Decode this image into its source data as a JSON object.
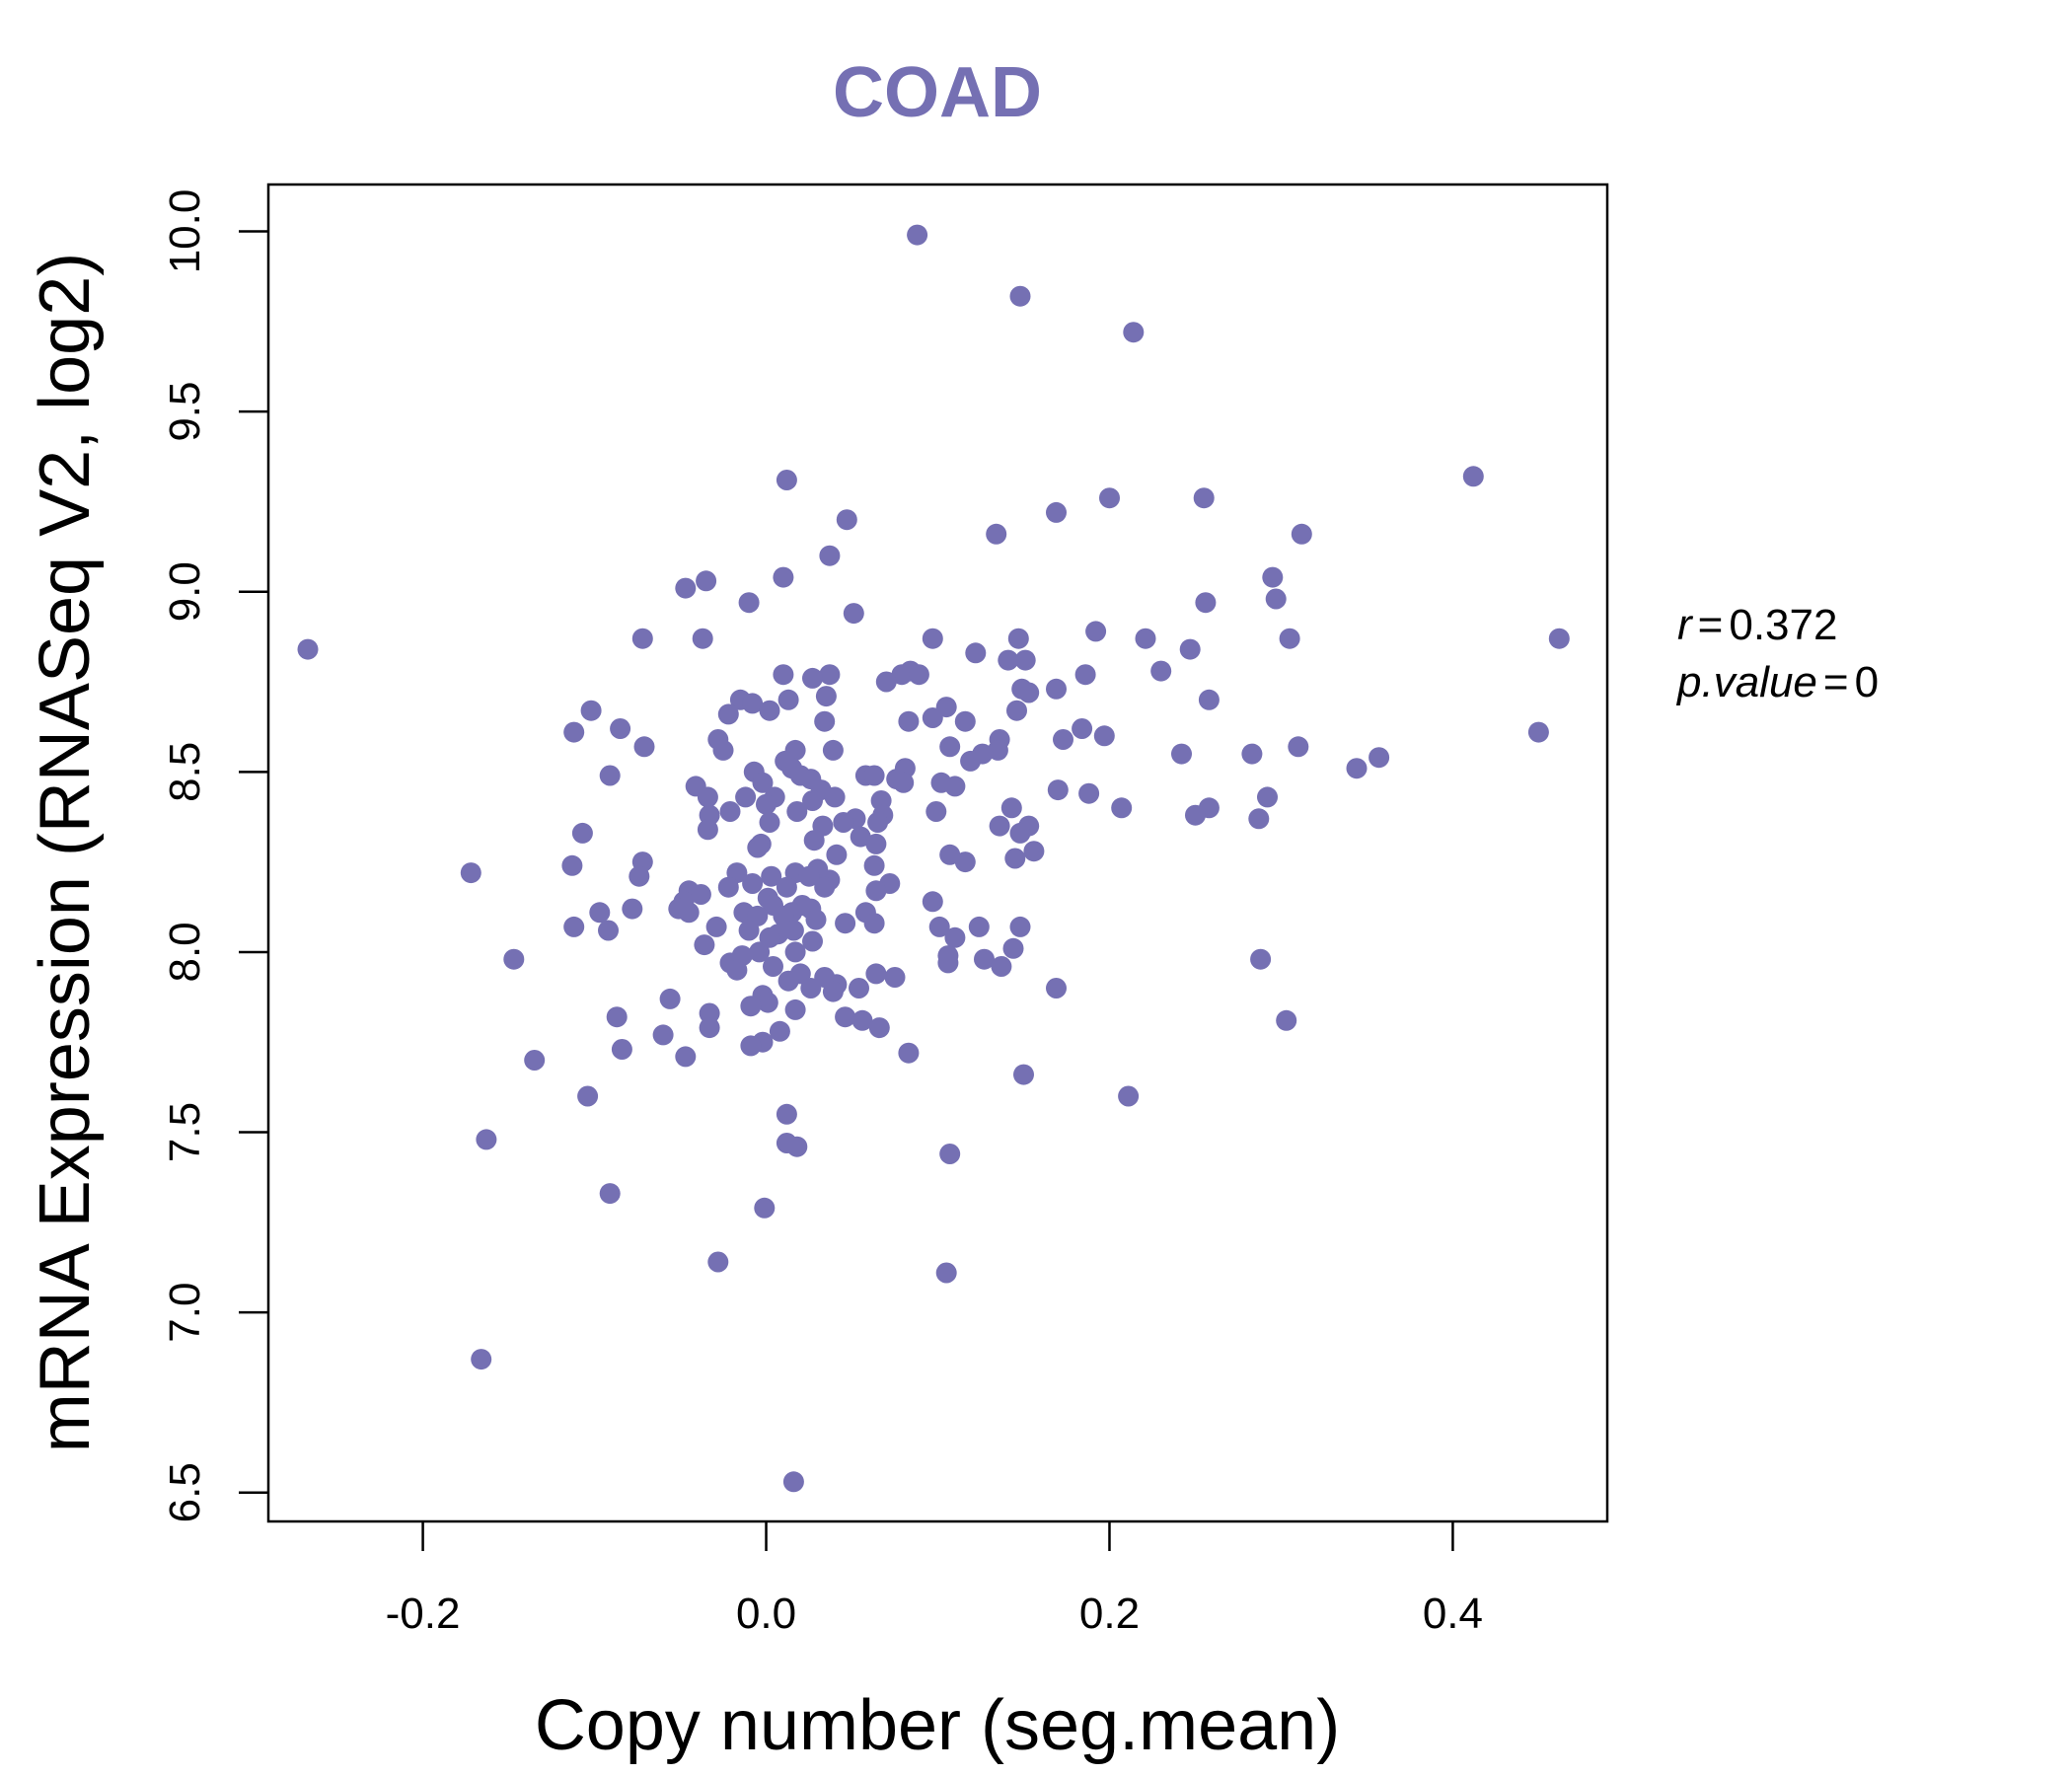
{
  "chart_data": {
    "type": "scatter",
    "title": "COAD",
    "xlabel": "Copy number (seg.mean)",
    "ylabel": "mRNA Expression (RNASeq V2, log2)",
    "xlim": [
      -0.29,
      0.49
    ],
    "ylim": [
      6.42,
      10.13
    ],
    "xticks": [
      -0.2,
      0.0,
      0.2,
      0.4
    ],
    "xtick_labels": [
      "-0.2",
      "0.0",
      "0.2",
      "0.4"
    ],
    "yticks": [
      6.5,
      7.0,
      7.5,
      8.0,
      8.5,
      9.0,
      9.5,
      10.0
    ],
    "ytick_labels": [
      "6.5",
      "7.0",
      "7.5",
      "8.0",
      "8.5",
      "9.0",
      "9.5",
      "10.0"
    ],
    "grid": false,
    "point_color": "#7570b3",
    "title_color": "#7570b3",
    "stats": {
      "r_label": "r",
      "r_value": "0.372",
      "p_label": "p.value",
      "p_value": "0"
    },
    "points": [
      {
        "x": -0.267,
        "y": 8.84
      },
      {
        "x": 0.088,
        "y": 9.99
      },
      {
        "x": 0.148,
        "y": 9.82
      },
      {
        "x": 0.214,
        "y": 9.72
      },
      {
        "x": 0.412,
        "y": 9.32
      },
      {
        "x": 0.012,
        "y": 9.31
      },
      {
        "x": 0.169,
        "y": 9.22
      },
      {
        "x": 0.2,
        "y": 9.26
      },
      {
        "x": 0.255,
        "y": 9.26
      },
      {
        "x": 0.047,
        "y": 9.2
      },
      {
        "x": 0.134,
        "y": 9.16
      },
      {
        "x": 0.312,
        "y": 9.16
      },
      {
        "x": 0.037,
        "y": 9.1
      },
      {
        "x": 0.295,
        "y": 9.04
      },
      {
        "x": -0.047,
        "y": 9.01
      },
      {
        "x": -0.035,
        "y": 9.03
      },
      {
        "x": 0.01,
        "y": 9.04
      },
      {
        "x": 0.297,
        "y": 8.98
      },
      {
        "x": 0.256,
        "y": 8.97
      },
      {
        "x": -0.01,
        "y": 8.97
      },
      {
        "x": 0.051,
        "y": 8.94
      },
      {
        "x": 0.192,
        "y": 8.89
      },
      {
        "x": 0.462,
        "y": 8.87
      },
      {
        "x": 0.305,
        "y": 8.87
      },
      {
        "x": 0.221,
        "y": 8.87
      },
      {
        "x": 0.147,
        "y": 8.87
      },
      {
        "x": 0.097,
        "y": 8.87
      },
      {
        "x": -0.072,
        "y": 8.87
      },
      {
        "x": -0.037,
        "y": 8.87
      },
      {
        "x": 0.247,
        "y": 8.84
      },
      {
        "x": 0.122,
        "y": 8.83
      },
      {
        "x": 0.151,
        "y": 8.81
      },
      {
        "x": 0.141,
        "y": 8.81
      },
      {
        "x": 0.23,
        "y": 8.78
      },
      {
        "x": 0.084,
        "y": 8.78
      },
      {
        "x": 0.079,
        "y": 8.77
      },
      {
        "x": 0.089,
        "y": 8.77
      },
      {
        "x": 0.186,
        "y": 8.77
      },
      {
        "x": 0.01,
        "y": 8.77
      },
      {
        "x": 0.037,
        "y": 8.77
      },
      {
        "x": 0.027,
        "y": 8.76
      },
      {
        "x": 0.07,
        "y": 8.75
      },
      {
        "x": 0.169,
        "y": 8.73
      },
      {
        "x": 0.149,
        "y": 8.73
      },
      {
        "x": 0.153,
        "y": 8.72
      },
      {
        "x": 0.035,
        "y": 8.71
      },
      {
        "x": 0.258,
        "y": 8.7
      },
      {
        "x": 0.013,
        "y": 8.7
      },
      {
        "x": -0.015,
        "y": 8.7
      },
      {
        "x": -0.008,
        "y": 8.69
      },
      {
        "x": 0.105,
        "y": 8.68
      },
      {
        "x": -0.102,
        "y": 8.67
      },
      {
        "x": 0.002,
        "y": 8.67
      },
      {
        "x": 0.146,
        "y": 8.67
      },
      {
        "x": -0.022,
        "y": 8.66
      },
      {
        "x": 0.097,
        "y": 8.65
      },
      {
        "x": 0.116,
        "y": 8.64
      },
      {
        "x": 0.083,
        "y": 8.64
      },
      {
        "x": 0.034,
        "y": 8.64
      },
      {
        "x": 0.45,
        "y": 8.61
      },
      {
        "x": -0.112,
        "y": 8.61
      },
      {
        "x": -0.085,
        "y": 8.62
      },
      {
        "x": 0.184,
        "y": 8.62
      },
      {
        "x": 0.173,
        "y": 8.59
      },
      {
        "x": 0.197,
        "y": 8.6
      },
      {
        "x": -0.028,
        "y": 8.59
      },
      {
        "x": 0.136,
        "y": 8.59
      },
      {
        "x": -0.071,
        "y": 8.57
      },
      {
        "x": 0.31,
        "y": 8.57
      },
      {
        "x": 0.107,
        "y": 8.57
      },
      {
        "x": 0.135,
        "y": 8.56
      },
      {
        "x": 0.017,
        "y": 8.56
      },
      {
        "x": 0.039,
        "y": 8.56
      },
      {
        "x": -0.025,
        "y": 8.56
      },
      {
        "x": 0.357,
        "y": 8.54
      },
      {
        "x": 0.283,
        "y": 8.55
      },
      {
        "x": 0.242,
        "y": 8.55
      },
      {
        "x": 0.126,
        "y": 8.55
      },
      {
        "x": 0.119,
        "y": 8.53
      },
      {
        "x": 0.011,
        "y": 8.53
      },
      {
        "x": 0.344,
        "y": 8.51
      },
      {
        "x": 0.081,
        "y": 8.51
      },
      {
        "x": 0.015,
        "y": 8.51
      },
      {
        "x": -0.007,
        "y": 8.5
      },
      {
        "x": 0.058,
        "y": 8.49
      },
      {
        "x": 0.063,
        "y": 8.49
      },
      {
        "x": 0.02,
        "y": 8.49
      },
      {
        "x": -0.091,
        "y": 8.49
      },
      {
        "x": 0.026,
        "y": 8.48
      },
      {
        "x": 0.076,
        "y": 8.48
      },
      {
        "x": 0.08,
        "y": 8.47
      },
      {
        "x": -0.002,
        "y": 8.47
      },
      {
        "x": 0.102,
        "y": 8.47
      },
      {
        "x": 0.11,
        "y": 8.46
      },
      {
        "x": -0.041,
        "y": 8.46
      },
      {
        "x": 0.17,
        "y": 8.45
      },
      {
        "x": 0.032,
        "y": 8.45
      },
      {
        "x": 0.188,
        "y": 8.44
      },
      {
        "x": -0.034,
        "y": 8.43
      },
      {
        "x": -0.012,
        "y": 8.43
      },
      {
        "x": 0.292,
        "y": 8.43
      },
      {
        "x": 0.04,
        "y": 8.43
      },
      {
        "x": 0.005,
        "y": 8.43
      },
      {
        "x": 0.027,
        "y": 8.42
      },
      {
        "x": 0.067,
        "y": 8.42
      },
      {
        "x": 0.0,
        "y": 8.41
      },
      {
        "x": 0.207,
        "y": 8.4
      },
      {
        "x": 0.258,
        "y": 8.4
      },
      {
        "x": 0.143,
        "y": 8.4
      },
      {
        "x": 0.099,
        "y": 8.39
      },
      {
        "x": -0.021,
        "y": 8.39
      },
      {
        "x": 0.018,
        "y": 8.39
      },
      {
        "x": 0.068,
        "y": 8.38
      },
      {
        "x": 0.25,
        "y": 8.38
      },
      {
        "x": -0.033,
        "y": 8.38
      },
      {
        "x": 0.287,
        "y": 8.37
      },
      {
        "x": 0.052,
        "y": 8.37
      },
      {
        "x": 0.045,
        "y": 8.36
      },
      {
        "x": 0.002,
        "y": 8.36
      },
      {
        "x": 0.065,
        "y": 8.36
      },
      {
        "x": 0.136,
        "y": 8.35
      },
      {
        "x": 0.153,
        "y": 8.35
      },
      {
        "x": 0.033,
        "y": 8.35
      },
      {
        "x": -0.034,
        "y": 8.34
      },
      {
        "x": -0.107,
        "y": 8.33
      },
      {
        "x": 0.148,
        "y": 8.33
      },
      {
        "x": 0.055,
        "y": 8.32
      },
      {
        "x": 0.028,
        "y": 8.31
      },
      {
        "x": -0.003,
        "y": 8.3
      },
      {
        "x": 0.064,
        "y": 8.3
      },
      {
        "x": -0.005,
        "y": 8.29
      },
      {
        "x": 0.156,
        "y": 8.28
      },
      {
        "x": 0.041,
        "y": 8.27
      },
      {
        "x": 0.107,
        "y": 8.27
      },
      {
        "x": 0.145,
        "y": 8.26
      },
      {
        "x": 0.116,
        "y": 8.25
      },
      {
        "x": -0.113,
        "y": 8.24
      },
      {
        "x": -0.072,
        "y": 8.25
      },
      {
        "x": 0.063,
        "y": 8.24
      },
      {
        "x": 0.03,
        "y": 8.23
      },
      {
        "x": -0.172,
        "y": 8.22
      },
      {
        "x": -0.017,
        "y": 8.22
      },
      {
        "x": 0.017,
        "y": 8.22
      },
      {
        "x": 0.025,
        "y": 8.21
      },
      {
        "x": -0.074,
        "y": 8.21
      },
      {
        "x": 0.003,
        "y": 8.21
      },
      {
        "x": 0.037,
        "y": 8.2
      },
      {
        "x": 0.072,
        "y": 8.19
      },
      {
        "x": -0.008,
        "y": 8.19
      },
      {
        "x": 0.012,
        "y": 8.18
      },
      {
        "x": -0.022,
        "y": 8.18
      },
      {
        "x": 0.034,
        "y": 8.18
      },
      {
        "x": 0.064,
        "y": 8.17
      },
      {
        "x": -0.045,
        "y": 8.17
      },
      {
        "x": -0.038,
        "y": 8.16
      },
      {
        "x": 0.001,
        "y": 8.15
      },
      {
        "x": -0.048,
        "y": 8.14
      },
      {
        "x": 0.097,
        "y": 8.14
      },
      {
        "x": 0.021,
        "y": 8.13
      },
      {
        "x": 0.004,
        "y": 8.13
      },
      {
        "x": -0.051,
        "y": 8.12
      },
      {
        "x": -0.078,
        "y": 8.12
      },
      {
        "x": 0.026,
        "y": 8.12
      },
      {
        "x": 0.015,
        "y": 8.11
      },
      {
        "x": -0.097,
        "y": 8.11
      },
      {
        "x": -0.045,
        "y": 8.11
      },
      {
        "x": -0.013,
        "y": 8.11
      },
      {
        "x": 0.058,
        "y": 8.11
      },
      {
        "x": -0.005,
        "y": 8.1
      },
      {
        "x": 0.01,
        "y": 8.1
      },
      {
        "x": 0.029,
        "y": 8.09
      },
      {
        "x": 0.063,
        "y": 8.08
      },
      {
        "x": 0.046,
        "y": 8.08
      },
      {
        "x": 0.148,
        "y": 8.07
      },
      {
        "x": -0.112,
        "y": 8.07
      },
      {
        "x": -0.029,
        "y": 8.07
      },
      {
        "x": 0.101,
        "y": 8.07
      },
      {
        "x": 0.124,
        "y": 8.07
      },
      {
        "x": -0.092,
        "y": 8.06
      },
      {
        "x": 0.016,
        "y": 8.06
      },
      {
        "x": -0.01,
        "y": 8.06
      },
      {
        "x": 0.007,
        "y": 8.05
      },
      {
        "x": 0.11,
        "y": 8.04
      },
      {
        "x": 0.002,
        "y": 8.04
      },
      {
        "x": 0.027,
        "y": 8.03
      },
      {
        "x": -0.036,
        "y": 8.02
      },
      {
        "x": 0.144,
        "y": 8.01
      },
      {
        "x": 0.017,
        "y": 8.0
      },
      {
        "x": -0.004,
        "y": 8.0
      },
      {
        "x": -0.014,
        "y": 7.99
      },
      {
        "x": 0.106,
        "y": 7.99
      },
      {
        "x": -0.147,
        "y": 7.98
      },
      {
        "x": 0.288,
        "y": 7.98
      },
      {
        "x": 0.127,
        "y": 7.98
      },
      {
        "x": 0.106,
        "y": 7.97
      },
      {
        "x": -0.021,
        "y": 7.97
      },
      {
        "x": 0.004,
        "y": 7.96
      },
      {
        "x": 0.137,
        "y": 7.96
      },
      {
        "x": -0.017,
        "y": 7.95
      },
      {
        "x": 0.02,
        "y": 7.94
      },
      {
        "x": 0.034,
        "y": 7.93
      },
      {
        "x": 0.064,
        "y": 7.94
      },
      {
        "x": 0.075,
        "y": 7.93
      },
      {
        "x": 0.013,
        "y": 7.92
      },
      {
        "x": 0.041,
        "y": 7.91
      },
      {
        "x": 0.026,
        "y": 7.9
      },
      {
        "x": 0.054,
        "y": 7.9
      },
      {
        "x": 0.169,
        "y": 7.9
      },
      {
        "x": 0.039,
        "y": 7.89
      },
      {
        "x": -0.002,
        "y": 7.88
      },
      {
        "x": -0.056,
        "y": 7.87
      },
      {
        "x": 0.001,
        "y": 7.86
      },
      {
        "x": -0.009,
        "y": 7.85
      },
      {
        "x": 0.017,
        "y": 7.84
      },
      {
        "x": -0.033,
        "y": 7.83
      },
      {
        "x": 0.046,
        "y": 7.82
      },
      {
        "x": -0.087,
        "y": 7.82
      },
      {
        "x": 0.056,
        "y": 7.81
      },
      {
        "x": 0.303,
        "y": 7.81
      },
      {
        "x": 0.066,
        "y": 7.79
      },
      {
        "x": -0.033,
        "y": 7.79
      },
      {
        "x": 0.008,
        "y": 7.78
      },
      {
        "x": -0.06,
        "y": 7.77
      },
      {
        "x": -0.002,
        "y": 7.75
      },
      {
        "x": -0.009,
        "y": 7.74
      },
      {
        "x": -0.084,
        "y": 7.73
      },
      {
        "x": 0.083,
        "y": 7.72
      },
      {
        "x": -0.047,
        "y": 7.71
      },
      {
        "x": -0.135,
        "y": 7.7
      },
      {
        "x": 0.15,
        "y": 7.66
      },
      {
        "x": -0.104,
        "y": 7.6
      },
      {
        "x": 0.211,
        "y": 7.6
      },
      {
        "x": 0.012,
        "y": 7.55
      },
      {
        "x": -0.163,
        "y": 7.48
      },
      {
        "x": 0.012,
        "y": 7.47
      },
      {
        "x": 0.018,
        "y": 7.46
      },
      {
        "x": 0.107,
        "y": 7.44
      },
      {
        "x": -0.091,
        "y": 7.33
      },
      {
        "x": -0.001,
        "y": 7.29
      },
      {
        "x": -0.028,
        "y": 7.14
      },
      {
        "x": 0.105,
        "y": 7.11
      },
      {
        "x": -0.166,
        "y": 6.87
      },
      {
        "x": 0.016,
        "y": 6.53
      }
    ]
  }
}
